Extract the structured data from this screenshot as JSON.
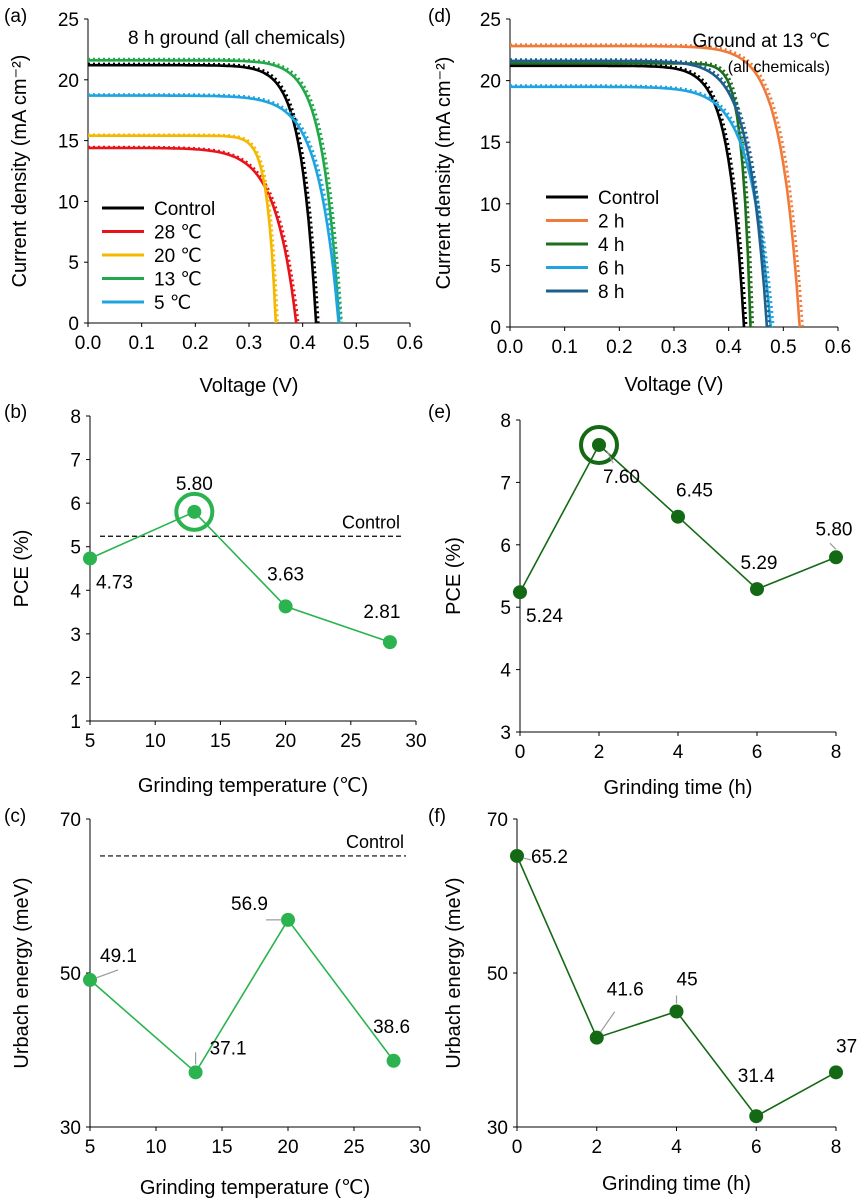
{
  "colors": {
    "black": "#000000",
    "red": "#e8141b",
    "yellow": "#f5b800",
    "green": "#22a84a",
    "blue": "#1fa4e0",
    "orange": "#ef7a3a",
    "darkgreen": "#1e6e1e",
    "steel": "#1f5f8c",
    "light_green_marker": "#2bb34f",
    "dark_green_marker": "#146914",
    "callout_gray": "#9a9a9a"
  },
  "chart_data": [
    {
      "panel": "(a)",
      "type": "line",
      "annotation": "8 h ground (all chemicals)",
      "xlabel": "Voltage (V)",
      "ylabel": "Current density (mA cm⁻²)",
      "xlim": [
        0,
        0.6
      ],
      "ylim": [
        0,
        25
      ],
      "xticks": [
        "0.0",
        "0.1",
        "0.2",
        "0.3",
        "0.4",
        "0.5",
        "0.6"
      ],
      "yticks": [
        "0",
        "5",
        "10",
        "15",
        "20",
        "25"
      ],
      "legend_position": "lower-left",
      "series": [
        {
          "name": "Control",
          "color": "black",
          "jsc": 21.2,
          "voc": 0.425,
          "shape": 0.065
        },
        {
          "name": "28 ℃",
          "color": "red",
          "jsc": 14.4,
          "voc": 0.388,
          "shape": 0.1
        },
        {
          "name": "20 ℃",
          "color": "yellow",
          "jsc": 15.4,
          "voc": 0.35,
          "shape": 0.045
        },
        {
          "name": "13 ℃",
          "color": "green",
          "jsc": 21.6,
          "voc": 0.468,
          "shape": 0.065
        },
        {
          "name": "5 ℃",
          "color": "blue",
          "jsc": 18.7,
          "voc": 0.467,
          "shape": 0.08
        }
      ]
    },
    {
      "panel": "(d)",
      "type": "line",
      "annotation": "Ground at 13 ℃",
      "annotation_sub": "(all chemicals)",
      "xlabel": "Voltage (V)",
      "ylabel": "Current density (mA cm⁻²)",
      "xlim": [
        0,
        0.6
      ],
      "ylim": [
        0,
        25
      ],
      "xticks": [
        "0.0",
        "0.1",
        "0.2",
        "0.3",
        "0.4",
        "0.5",
        "0.6"
      ],
      "yticks": [
        "0",
        "5",
        "10",
        "15",
        "20",
        "25"
      ],
      "legend_position": "lower-left",
      "series": [
        {
          "name": "Control",
          "color": "black",
          "jsc": 21.2,
          "voc": 0.428,
          "shape": 0.065
        },
        {
          "name": "2 h",
          "color": "orange",
          "jsc": 22.8,
          "voc": 0.53,
          "shape": 0.065
        },
        {
          "name": "4 h",
          "color": "darkgreen",
          "jsc": 21.4,
          "voc": 0.44,
          "shape": 0.035
        },
        {
          "name": "6 h",
          "color": "blue",
          "jsc": 19.5,
          "voc": 0.477,
          "shape": 0.08
        },
        {
          "name": "8 h",
          "color": "steel",
          "jsc": 21.6,
          "voc": 0.47,
          "shape": 0.07
        }
      ]
    },
    {
      "panel": "(b)",
      "type": "line",
      "xlabel": "Grinding temperature (℃)",
      "ylabel": "PCE (%)",
      "xlim": [
        5,
        30
      ],
      "ylim": [
        1,
        8
      ],
      "xticks": [
        "5",
        "10",
        "15",
        "20",
        "25",
        "30"
      ],
      "yticks": [
        "1",
        "2",
        "3",
        "4",
        "5",
        "6",
        "7",
        "8"
      ],
      "x": [
        5,
        13,
        20,
        28
      ],
      "values": [
        4.73,
        5.8,
        3.63,
        2.81
      ],
      "labels": [
        "4.73",
        "5.80",
        "3.63",
        "2.81"
      ],
      "reference": {
        "label": "Control",
        "value": 5.24
      },
      "highlight_index": 1,
      "color": "light_green_marker"
    },
    {
      "panel": "(e)",
      "type": "line",
      "xlabel": "Grinding time (h)",
      "ylabel": "PCE (%)",
      "xlim": [
        0,
        8
      ],
      "ylim": [
        3,
        8
      ],
      "xticks": [
        "0",
        "2",
        "4",
        "6",
        "8"
      ],
      "yticks": [
        "3",
        "4",
        "5",
        "6",
        "7",
        "8"
      ],
      "x": [
        0,
        2,
        4,
        6,
        8
      ],
      "values": [
        5.24,
        7.6,
        6.45,
        5.29,
        5.8
      ],
      "labels": [
        "5.24",
        "7.60",
        "6.45",
        "5.29",
        "5.80"
      ],
      "highlight_index": 1,
      "color": "dark_green_marker"
    },
    {
      "panel": "(c)",
      "type": "line",
      "xlabel": "Grinding temperature (℃)",
      "ylabel": "Urbach energy (meV)",
      "xlim": [
        5,
        30
      ],
      "ylim": [
        30,
        70
      ],
      "xticks": [
        "5",
        "10",
        "15",
        "20",
        "25",
        "30"
      ],
      "yticks": [
        "30",
        "50",
        "70"
      ],
      "x": [
        5,
        13,
        20,
        28
      ],
      "values": [
        49.1,
        37.1,
        56.9,
        38.6
      ],
      "labels": [
        "49.1",
        "37.1",
        "56.9",
        "38.6"
      ],
      "reference": {
        "label": "Control",
        "value": 65.2
      },
      "color": "light_green_marker"
    },
    {
      "panel": "(f)",
      "type": "line",
      "xlabel": "Grinding time (h)",
      "ylabel": "Urbach energy (meV)",
      "xlim": [
        0,
        8
      ],
      "ylim": [
        30,
        70
      ],
      "xticks": [
        "0",
        "2",
        "4",
        "6",
        "8"
      ],
      "yticks": [
        "30",
        "50",
        "70"
      ],
      "x": [
        0,
        2,
        4,
        6,
        8
      ],
      "values": [
        65.2,
        41.6,
        45.0,
        31.4,
        37.1
      ],
      "labels": [
        "65.2",
        "41.6",
        "45",
        "31.4",
        "37.1"
      ],
      "color": "dark_green_marker"
    }
  ]
}
